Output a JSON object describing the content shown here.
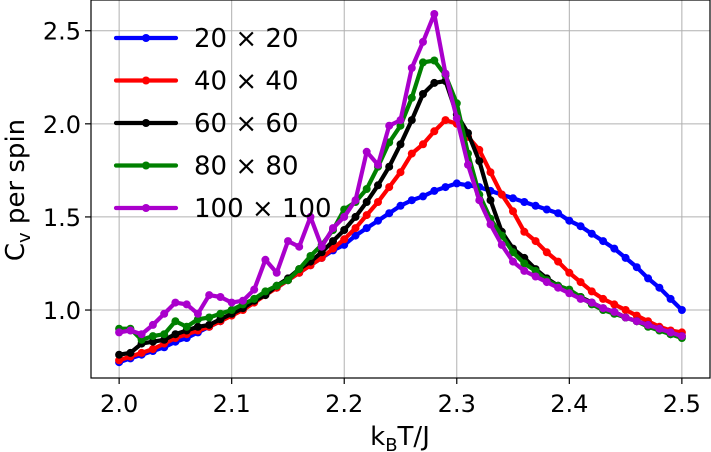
{
  "chart_data": {
    "type": "line",
    "title": "",
    "xlabel_main": "k",
    "xlabel_sub": "B",
    "xlabel_tail": "T/J",
    "ylabel_main": "C",
    "ylabel_sub": "v",
    "ylabel_tail": " per spin",
    "xlim": [
      1.975,
      2.525
    ],
    "ylim": [
      0.635,
      2.665
    ],
    "xticks": [
      2.0,
      2.1,
      2.2,
      2.3,
      2.4,
      2.5
    ],
    "xtick_labels": [
      "2.0",
      "2.1",
      "2.2",
      "2.3",
      "2.4",
      "2.5"
    ],
    "yticks": [
      1.0,
      1.5,
      2.0,
      2.5
    ],
    "ytick_labels": [
      "1.0",
      "1.5",
      "2.0",
      "2.5"
    ],
    "grid": true,
    "legend_position": "upper-left",
    "x": [
      2.0,
      2.01,
      2.02,
      2.03,
      2.04,
      2.05,
      2.06,
      2.07,
      2.08,
      2.09,
      2.1,
      2.11,
      2.12,
      2.13,
      2.14,
      2.15,
      2.16,
      2.17,
      2.18,
      2.19,
      2.2,
      2.21,
      2.22,
      2.23,
      2.24,
      2.25,
      2.26,
      2.27,
      2.28,
      2.29,
      2.3,
      2.31,
      2.32,
      2.33,
      2.34,
      2.35,
      2.36,
      2.37,
      2.38,
      2.39,
      2.4,
      2.41,
      2.42,
      2.43,
      2.44,
      2.45,
      2.46,
      2.47,
      2.48,
      2.49,
      2.5
    ],
    "series": [
      {
        "name": "20 × 20",
        "color": "#0000ff",
        "values": [
          0.72,
          0.74,
          0.76,
          0.78,
          0.8,
          0.83,
          0.85,
          0.88,
          0.91,
          0.94,
          0.98,
          1.01,
          1.05,
          1.09,
          1.12,
          1.16,
          1.2,
          1.24,
          1.28,
          1.32,
          1.35,
          1.4,
          1.44,
          1.48,
          1.52,
          1.56,
          1.59,
          1.61,
          1.64,
          1.66,
          1.68,
          1.67,
          1.66,
          1.64,
          1.62,
          1.6,
          1.58,
          1.56,
          1.54,
          1.52,
          1.48,
          1.45,
          1.41,
          1.37,
          1.33,
          1.28,
          1.23,
          1.17,
          1.12,
          1.06,
          1.0
        ]
      },
      {
        "name": "40 × 40",
        "color": "#ff0000",
        "values": [
          0.73,
          0.75,
          0.77,
          0.79,
          0.82,
          0.85,
          0.87,
          0.89,
          0.91,
          0.94,
          0.97,
          1.0,
          1.04,
          1.08,
          1.12,
          1.16,
          1.2,
          1.24,
          1.28,
          1.33,
          1.38,
          1.44,
          1.51,
          1.58,
          1.66,
          1.74,
          1.84,
          1.89,
          1.96,
          2.02,
          2.0,
          1.93,
          1.86,
          1.74,
          1.62,
          1.53,
          1.42,
          1.37,
          1.31,
          1.26,
          1.2,
          1.15,
          1.1,
          1.06,
          1.03,
          1.0,
          0.97,
          0.94,
          0.91,
          0.89,
          0.88
        ]
      },
      {
        "name": "60 × 60",
        "color": "#000000",
        "values": [
          0.76,
          0.77,
          0.82,
          0.83,
          0.84,
          0.87,
          0.89,
          0.91,
          0.92,
          0.95,
          0.98,
          1.01,
          1.05,
          1.08,
          1.13,
          1.17,
          1.22,
          1.26,
          1.31,
          1.37,
          1.43,
          1.5,
          1.58,
          1.67,
          1.77,
          1.89,
          2.02,
          2.16,
          2.22,
          2.23,
          2.05,
          1.95,
          1.8,
          1.59,
          1.42,
          1.33,
          1.28,
          1.22,
          1.17,
          1.13,
          1.1,
          1.07,
          1.04,
          1.01,
          0.99,
          0.96,
          0.94,
          0.92,
          0.9,
          0.87,
          0.86
        ]
      },
      {
        "name": "80 × 80",
        "color": "#008000",
        "values": [
          0.9,
          0.9,
          0.84,
          0.86,
          0.87,
          0.94,
          0.91,
          0.95,
          0.96,
          0.98,
          1.0,
          1.03,
          1.06,
          1.1,
          1.13,
          1.16,
          1.22,
          1.29,
          1.35,
          1.43,
          1.54,
          1.58,
          1.65,
          1.77,
          1.9,
          1.99,
          2.14,
          2.33,
          2.34,
          2.26,
          2.11,
          1.84,
          1.62,
          1.49,
          1.4,
          1.31,
          1.25,
          1.21,
          1.16,
          1.13,
          1.11,
          1.07,
          1.03,
          1.0,
          0.98,
          0.96,
          0.94,
          0.91,
          0.89,
          0.87,
          0.85
        ]
      },
      {
        "name": "100 × 100",
        "color": "#aa00cc",
        "values": [
          0.88,
          0.89,
          0.87,
          0.92,
          0.98,
          1.04,
          1.03,
          0.98,
          1.08,
          1.07,
          1.04,
          1.05,
          1.11,
          1.27,
          1.2,
          1.37,
          1.34,
          1.5,
          1.34,
          1.44,
          1.5,
          1.59,
          1.85,
          1.78,
          1.99,
          2.02,
          2.3,
          2.44,
          2.59,
          2.27,
          2.03,
          1.78,
          1.59,
          1.46,
          1.35,
          1.26,
          1.21,
          1.18,
          1.15,
          1.12,
          1.09,
          1.06,
          1.04,
          1.01,
          0.99,
          0.96,
          0.94,
          0.92,
          0.9,
          0.88,
          0.86
        ]
      }
    ]
  }
}
